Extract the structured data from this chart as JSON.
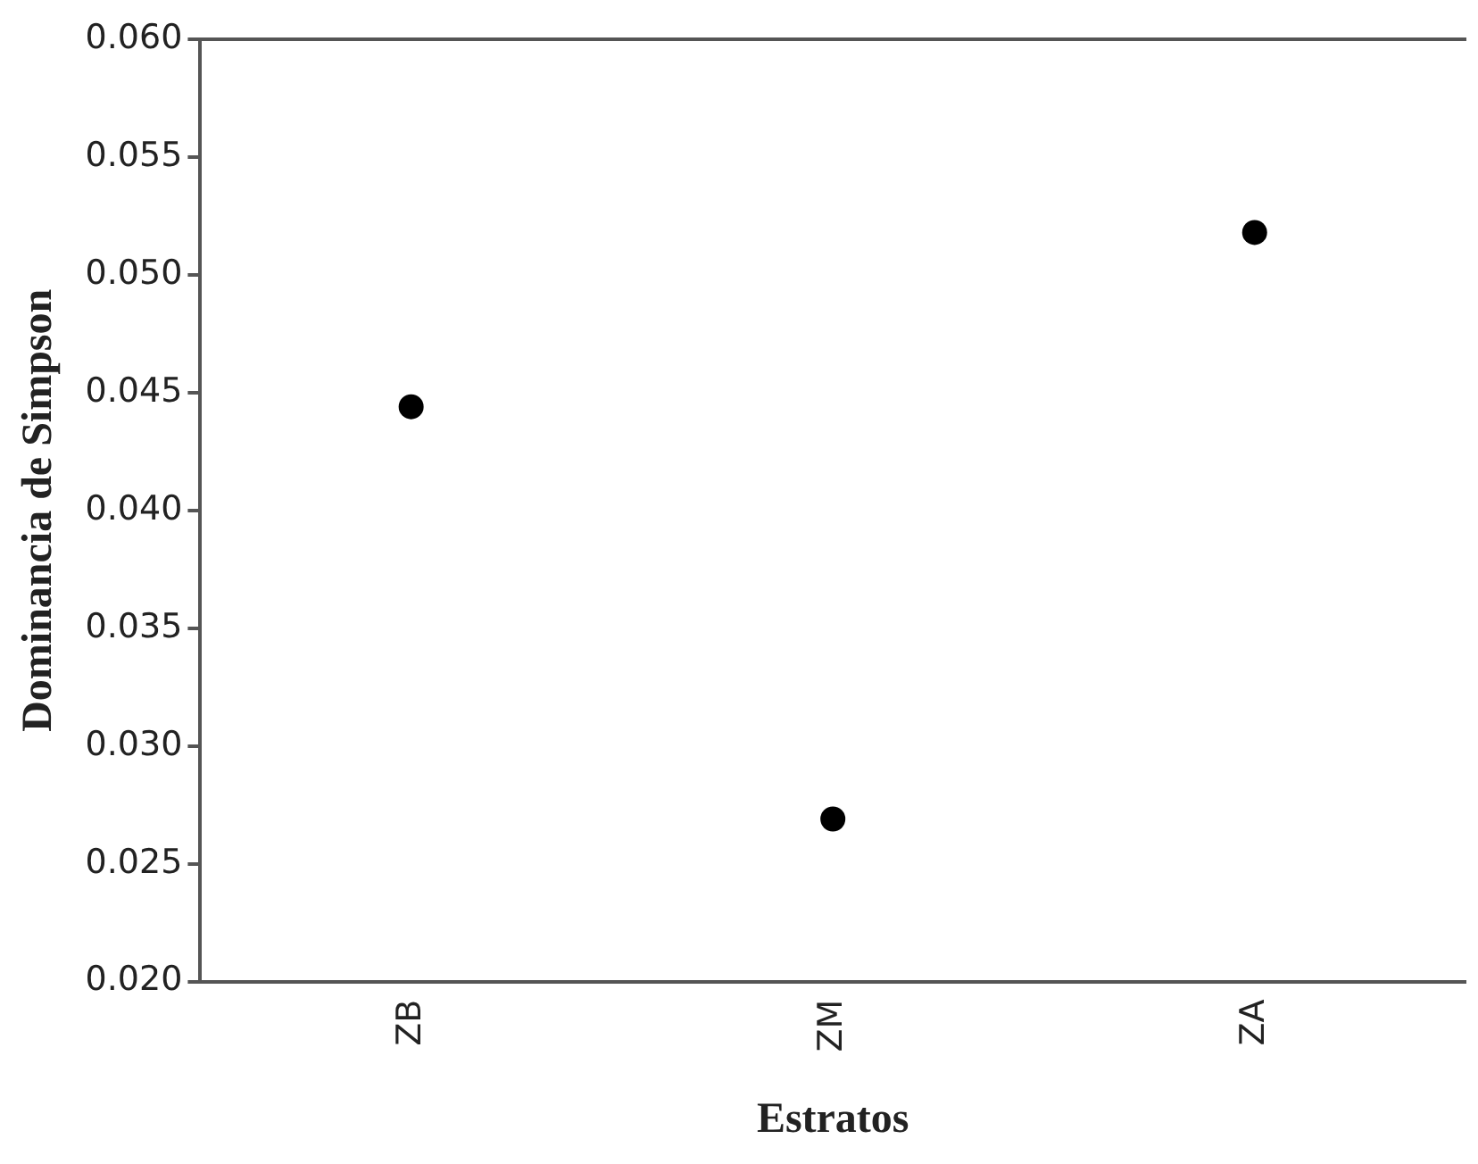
{
  "chart_data": {
    "type": "scatter",
    "xlabel": "Estratos",
    "ylabel": "Dominancia de Simpson",
    "categories": [
      "ZB",
      "ZM",
      "ZA"
    ],
    "series": [
      {
        "color": "#000000",
        "values": [
          0.0444,
          0.0269,
          0.0518
        ]
      }
    ],
    "ylim": [
      0.02,
      0.06
    ],
    "yticks": [
      {
        "value": 0.02,
        "label": "0.020"
      },
      {
        "value": 0.025,
        "label": "0.025"
      },
      {
        "value": 0.03,
        "label": "0.030"
      },
      {
        "value": 0.035,
        "label": "0.035"
      },
      {
        "value": 0.04,
        "label": "0.040"
      },
      {
        "value": 0.045,
        "label": "0.045"
      },
      {
        "value": 0.05,
        "label": "0.050"
      },
      {
        "value": 0.055,
        "label": "0.055"
      },
      {
        "value": 0.06,
        "label": "0.060"
      }
    ],
    "grid": false,
    "legend": false,
    "marker": "circle"
  }
}
